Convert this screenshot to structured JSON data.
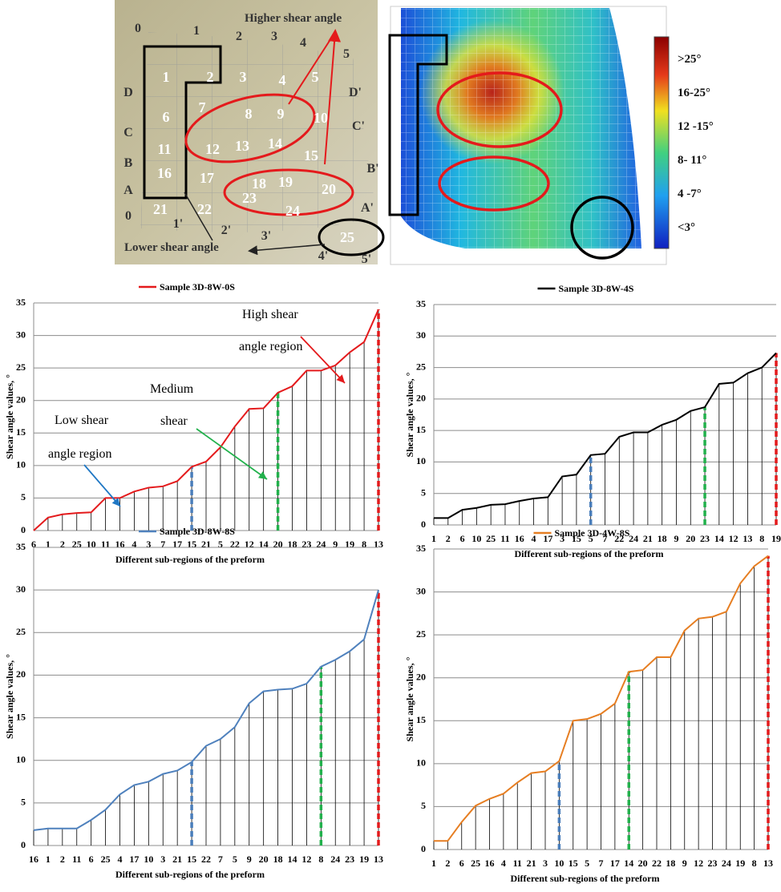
{
  "figure": {
    "captions": [
      "Higher shear angle",
      "Lower shear angle"
    ],
    "grid_labels": [
      "0",
      "1",
      "2",
      "3",
      "4",
      "5",
      "D'",
      "C'",
      "B'",
      "A'",
      "0",
      "1'",
      "2'",
      "3'",
      "4'",
      "5'",
      "D",
      "C",
      "B",
      "A"
    ],
    "region_labels": [
      "1",
      "2",
      "3",
      "4",
      "5",
      "6",
      "7",
      "8",
      "9",
      "10",
      "11",
      "12",
      "13",
      "14",
      "15",
      "16",
      "17",
      "18",
      "19",
      "20",
      "21",
      "22",
      "23",
      "24",
      "25"
    ],
    "colorbar_labels": [
      ">25°",
      "16-25°",
      "12 -15°",
      "8- 11°",
      "4 -7°",
      "<3°"
    ]
  },
  "chart_data": [
    {
      "type": "line",
      "series": [
        {
          "name": "Sample 3D-8W-0S",
          "color": "#e41a1c",
          "values": [
            0,
            2,
            2.5,
            2.7,
            2.8,
            5,
            5,
            6,
            6.6,
            6.8,
            7.6,
            9.8,
            10.6,
            12.8,
            16,
            18.7,
            18.8,
            21.2,
            22.2,
            24.6,
            24.6,
            25.4,
            27.4,
            29,
            34
          ]
        }
      ],
      "categories": [
        "6",
        "1",
        "2",
        "25",
        "10",
        "11",
        "16",
        "4",
        "3",
        "7",
        "17",
        "15",
        "21",
        "5",
        "22",
        "12",
        "14",
        "20",
        "18",
        "23",
        "24",
        "9",
        "19",
        "8",
        "13"
      ],
      "ylim": [
        0,
        35
      ],
      "yticks": [
        0,
        5,
        10,
        15,
        20,
        25,
        30,
        35
      ],
      "grid": true,
      "y_label": "Shear angle values, °",
      "x_label": "Different sub-regions  of the preform",
      "boundaries": [
        {
          "at": "15",
          "color": "#4a7ebb"
        },
        {
          "at": "20",
          "color": "#22b14c"
        },
        {
          "at": "13",
          "color": "#e41a1c"
        }
      ],
      "annotations": [
        "High shear",
        "angle region",
        "Medium",
        "shear",
        "Low shear",
        "angle region"
      ]
    },
    {
      "type": "line",
      "series": [
        {
          "name": "Sample 3D-8W-4S",
          "color": "#000000",
          "values": [
            1.1,
            1.1,
            2.4,
            2.7,
            3.2,
            3.3,
            3.8,
            4.2,
            4.4,
            7.7,
            8,
            11.1,
            11.3,
            14,
            14.7,
            14.7,
            15.9,
            16.7,
            18.1,
            18.7,
            22.4,
            22.6,
            24.1,
            25,
            27.3
          ]
        }
      ],
      "categories": [
        "1",
        "2",
        "6",
        "10",
        "25",
        "11",
        "16",
        "4",
        "17",
        "3",
        "15",
        "5",
        "7",
        "22",
        "24",
        "21",
        "18",
        "9",
        "20",
        "23",
        "14",
        "12",
        "13",
        "8",
        "19"
      ],
      "ylim": [
        0,
        35
      ],
      "yticks": [
        0,
        5,
        10,
        15,
        20,
        25,
        30,
        35
      ],
      "grid": true,
      "y_label": "Shear angle values, °",
      "x_label": "Different sub-regions  of the preform",
      "boundaries": [
        {
          "at": "5",
          "color": "#4a7ebb"
        },
        {
          "at": "23",
          "color": "#22b14c"
        },
        {
          "at": "19",
          "color": "#e41a1c"
        }
      ]
    },
    {
      "type": "line",
      "series": [
        {
          "name": "Sample 3D-8W-8S",
          "color": "#4f81bd",
          "values": [
            1.8,
            2,
            2,
            2,
            3,
            4.2,
            6,
            7.1,
            7.5,
            8.4,
            8.8,
            9.8,
            11.7,
            12.5,
            13.9,
            16.7,
            18.1,
            18.3,
            18.4,
            19,
            21,
            21.8,
            22.8,
            24.2,
            30
          ]
        }
      ],
      "categories": [
        "16",
        "1",
        "2",
        "11",
        "6",
        "25",
        "4",
        "17",
        "10",
        "3",
        "21",
        "15",
        "22",
        "7",
        "5",
        "9",
        "20",
        "18",
        "14",
        "12",
        "8",
        "24",
        "23",
        "19",
        "13"
      ],
      "ylim": [
        0,
        35
      ],
      "yticks": [
        0,
        5,
        10,
        15,
        20,
        25,
        30,
        35
      ],
      "grid": true,
      "y_label": "Shear angle values, °",
      "x_label": "Different sub-regions  of the preform",
      "boundaries": [
        {
          "at": "15",
          "color": "#4a7ebb"
        },
        {
          "at": "8",
          "color": "#22b14c"
        },
        {
          "at": "13",
          "color": "#e41a1c"
        }
      ]
    },
    {
      "type": "line",
      "series": [
        {
          "name": "Sample 3D-4W-8S",
          "color": "#e67e22",
          "values": [
            1,
            1,
            3.2,
            5.1,
            5.9,
            6.5,
            7.8,
            8.9,
            9.1,
            10.3,
            15,
            15.2,
            15.8,
            17,
            20.7,
            20.9,
            22.4,
            22.4,
            25.5,
            26.9,
            27.1,
            27.7,
            31,
            33,
            34.2
          ]
        }
      ],
      "categories": [
        "1",
        "2",
        "6",
        "25",
        "16",
        "4",
        "11",
        "21",
        "3",
        "10",
        "15",
        "5",
        "7",
        "17",
        "14",
        "20",
        "22",
        "18",
        "9",
        "12",
        "23",
        "24",
        "19",
        "8",
        "13"
      ],
      "ylim": [
        0,
        35
      ],
      "yticks": [
        0,
        5,
        10,
        15,
        20,
        25,
        30,
        35
      ],
      "grid": true,
      "y_label": "Shear angle values, °",
      "x_label": "Different sub-regions  of the preform",
      "boundaries": [
        {
          "at": "10",
          "color": "#4a7ebb"
        },
        {
          "at": "14",
          "color": "#22b14c"
        },
        {
          "at": "13",
          "color": "#e41a1c"
        }
      ]
    }
  ]
}
